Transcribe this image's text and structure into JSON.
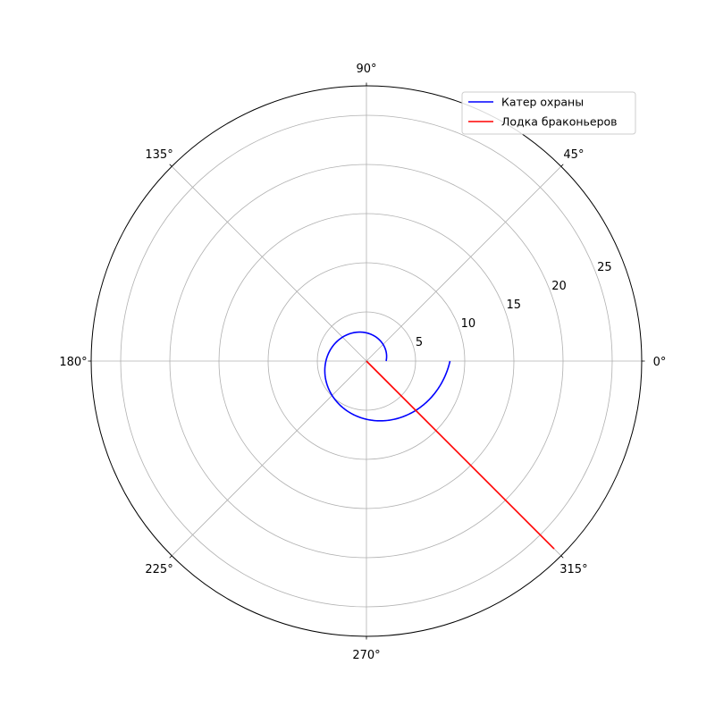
{
  "chart_data": {
    "type": "polar-line",
    "title": "",
    "theta_unit": "degrees",
    "theta_ticks": [
      {
        "value": 0,
        "label": "0°"
      },
      {
        "value": 45,
        "label": "45°"
      },
      {
        "value": 90,
        "label": "90°"
      },
      {
        "value": 135,
        "label": "135°"
      },
      {
        "value": 180,
        "label": "180°"
      },
      {
        "value": 225,
        "label": "225°"
      },
      {
        "value": 270,
        "label": "270°"
      },
      {
        "value": 315,
        "label": "315°"
      }
    ],
    "r_ticks": [
      5,
      10,
      15,
      20,
      25
    ],
    "r_range": [
      0,
      28
    ],
    "grid": true,
    "legend_position": "top-right",
    "series": [
      {
        "name": "Катер охраны",
        "color": "#0000ff",
        "kind": "log-spiral",
        "theta_deg_range": [
          0,
          360
        ],
        "r_start": 2.0,
        "r_end": 8.5
      },
      {
        "name": "Лодка браконьеров",
        "color": "#ff0000",
        "kind": "ray",
        "theta_deg": 315,
        "r_range": [
          0,
          27
        ]
      }
    ]
  }
}
